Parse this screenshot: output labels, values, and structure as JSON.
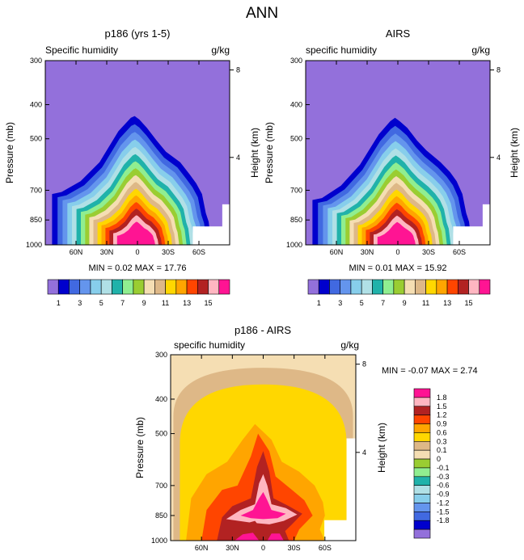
{
  "title": "ANN",
  "palette": [
    "#9370db",
    "#0000cd",
    "#4169e1",
    "#6495ed",
    "#87ceeb",
    "#b0e0e6",
    "#20b2aa",
    "#90ee90",
    "#9acd32",
    "#f5deb3",
    "#deb887",
    "#ffd700",
    "#ffa500",
    "#ff4500",
    "#b22222",
    "#ffb6c1",
    "#ff1493"
  ],
  "chart_data": [
    {
      "id": "model",
      "type": "contour",
      "title": "p186 (yrs 1-5)",
      "left_label": "Specific humidity",
      "right_label": "g/kg",
      "ylabel": "Pressure (mb)",
      "y2label": "Height (km)",
      "yticks": [
        "300",
        "400",
        "500",
        "700",
        "850",
        "1000"
      ],
      "y2ticks": [
        "8",
        "4"
      ],
      "xticks": [
        "60N",
        "30N",
        "0",
        "30S",
        "60S"
      ],
      "stats": "MIN =  0.02  MAX = 17.76",
      "ridge": [
        [
          -90,
          700
        ],
        [
          -80,
          690
        ],
        [
          -60,
          640
        ],
        [
          -40,
          560
        ],
        [
          -20,
          450
        ],
        [
          -7,
          410
        ],
        [
          -3,
          405
        ],
        [
          2,
          415
        ],
        [
          10,
          440
        ],
        [
          20,
          480
        ],
        [
          30,
          520
        ],
        [
          45,
          560
        ],
        [
          55,
          610
        ],
        [
          62,
          650
        ],
        [
          68,
          700
        ],
        [
          72,
          800
        ],
        [
          75,
          850
        ],
        [
          78,
          1000
        ]
      ],
      "levels": [
        1,
        2,
        3,
        4,
        5,
        6,
        7,
        8,
        9,
        10,
        11,
        12,
        13,
        14,
        15,
        16
      ],
      "lbvals": [
        1,
        3,
        5,
        7,
        9,
        11,
        13,
        15
      ]
    },
    {
      "id": "obs",
      "type": "contour",
      "title": "AIRS",
      "left_label": "specific humidity",
      "right_label": "g/kg",
      "ylabel": "Pressure (mb)",
      "y2label": "Height (km)",
      "yticks": [
        "300",
        "400",
        "500",
        "700",
        "850",
        "1000"
      ],
      "y2ticks": [
        "8",
        "4"
      ],
      "xticks": [
        "60N",
        "30N",
        "0",
        "30S",
        "60S"
      ],
      "stats": "MIN =  0.01  MAX = 15.92",
      "ridge": [
        [
          -90,
          730
        ],
        [
          -80,
          720
        ],
        [
          -60,
          660
        ],
        [
          -40,
          570
        ],
        [
          -20,
          460
        ],
        [
          -8,
          420
        ],
        [
          -3,
          410
        ],
        [
          2,
          420
        ],
        [
          10,
          440
        ],
        [
          20,
          480
        ],
        [
          30,
          515
        ],
        [
          45,
          560
        ],
        [
          55,
          600
        ],
        [
          62,
          640
        ],
        [
          68,
          700
        ],
        [
          72,
          800
        ],
        [
          75,
          850
        ],
        [
          78,
          1000
        ]
      ],
      "levels": [
        1,
        2,
        3,
        4,
        5,
        6,
        7,
        8,
        9,
        10,
        11,
        12,
        13,
        14,
        15,
        16
      ],
      "lbvals": [
        1,
        3,
        5,
        7,
        9,
        11,
        13,
        15
      ]
    },
    {
      "id": "diff",
      "type": "contour",
      "title": "p186 - AIRS",
      "left_label": "specific humidity",
      "right_label": "g/kg",
      "ylabel": "Pressure (mb)",
      "y2label": "Height (km)",
      "yticks": [
        "300",
        "400",
        "500",
        "700",
        "850",
        "1000"
      ],
      "y2ticks": [
        "8",
        "4"
      ],
      "xticks": [
        "60N",
        "30N",
        "0",
        "30S",
        "60S"
      ],
      "stats": "MIN = -0.07  MAX =  2.74",
      "levels": [
        -1.8,
        -1.5,
        -1.2,
        -0.9,
        -0.6,
        -0.3,
        -0.1,
        0,
        0.1,
        0.3,
        0.6,
        0.9,
        1.2,
        1.5,
        1.8
      ],
      "lbvals": [
        "1.8",
        "1.5",
        "1.2",
        "0.9",
        "0.6",
        "0.3",
        "0.1",
        "0",
        "-0.1",
        "-0.3",
        "-0.6",
        "-0.9",
        "-1.2",
        "-1.5",
        "-1.8"
      ]
    }
  ]
}
